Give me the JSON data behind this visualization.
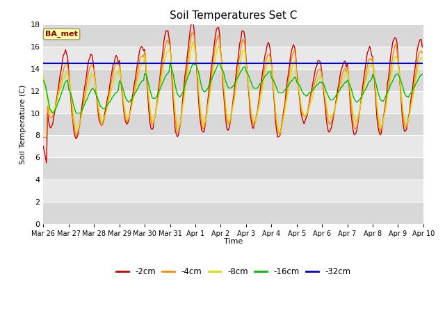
{
  "title": "Soil Temperatures Set C",
  "xlabel": "Time",
  "ylabel": "Soil Temperature (C)",
  "ylim": [
    0,
    18
  ],
  "yticks": [
    0,
    2,
    4,
    6,
    8,
    10,
    12,
    14,
    16,
    18
  ],
  "legend_label": "BA_met",
  "series_colors": {
    "-2cm": "#cc0000",
    "-4cm": "#ff8800",
    "-8cm": "#dddd00",
    "-16cm": "#00bb00",
    "-32cm": "#0000cc"
  },
  "series_labels": [
    "-2cm",
    "-4cm",
    "-8cm",
    "-16cm",
    "-32cm"
  ],
  "background_color": "#ffffff",
  "plot_bg_color": "#e0e0e0",
  "grid_color": "#ffffff",
  "x_labels": [
    "Mar 26",
    "Mar 27",
    "Mar 28",
    "Mar 29",
    "Mar 30",
    "Mar 31",
    "Apr 1",
    "Apr 2",
    "Apr 3",
    "Apr 4",
    "Apr 5",
    "Apr 6",
    "Apr 7",
    "Apr 8",
    "Apr 9",
    "Apr 10"
  ],
  "title_fontsize": 11,
  "tick_fontsize": 8
}
